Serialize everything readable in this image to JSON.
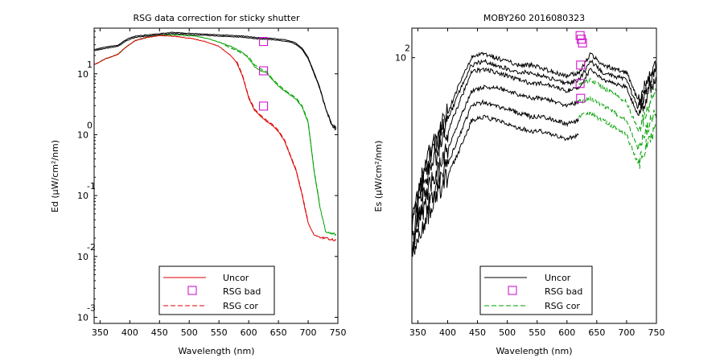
{
  "chart_data": [
    {
      "type": "line",
      "title": "RSG data correction for sticky shutter",
      "xlabel": "Wavelength (nm)",
      "ylabel": "Ed (µW/cm²/nm)",
      "yscale": "log",
      "xlim": [
        340,
        750
      ],
      "ylim_log10": [
        -3.1,
        1.75
      ],
      "xticks": [
        350,
        400,
        450,
        500,
        550,
        600,
        650,
        700,
        750
      ],
      "yticks": [
        {
          "exp": 1,
          "base": "10",
          "sup": "1"
        },
        {
          "exp": 0,
          "base": "10",
          "sup": "0"
        },
        {
          "exp": -1,
          "base": "10",
          "sup": "-1"
        },
        {
          "exp": -2,
          "base": "10",
          "sup": "-2"
        },
        {
          "exp": -3,
          "base": "10",
          "sup": "-3"
        }
      ],
      "legend": {
        "position": "bottom-center",
        "entries": [
          "Uncor",
          "RSG bad",
          "RSG cor"
        ]
      },
      "series": [
        {
          "name": "Uncor",
          "color": "#000000",
          "style": "solid",
          "x": [
            340,
            360,
            380,
            395,
            410,
            430,
            450,
            470,
            490,
            510,
            530,
            550,
            570,
            590,
            600,
            610,
            620,
            630,
            640,
            650,
            660,
            670,
            680,
            690,
            700,
            710,
            720,
            730,
            740,
            748
          ],
          "log10_y": [
            1.38,
            1.42,
            1.45,
            1.55,
            1.6,
            1.62,
            1.64,
            1.66,
            1.65,
            1.64,
            1.63,
            1.62,
            1.61,
            1.6,
            1.59,
            1.58,
            1.57,
            1.57,
            1.56,
            1.55,
            1.54,
            1.52,
            1.48,
            1.4,
            1.25,
            1.0,
            0.75,
            0.4,
            0.15,
            0.08
          ]
        },
        {
          "name": "Uncor",
          "color": "#000000",
          "style": "solid",
          "x": [
            340,
            360,
            380,
            395,
            410,
            430,
            450,
            470,
            490,
            510,
            530,
            550,
            570,
            590,
            600,
            610,
            620,
            630,
            640,
            650,
            660,
            670,
            680,
            690,
            700,
            710,
            720,
            730,
            740,
            748
          ],
          "log10_y": [
            1.4,
            1.44,
            1.47,
            1.57,
            1.62,
            1.64,
            1.66,
            1.68,
            1.67,
            1.66,
            1.65,
            1.64,
            1.63,
            1.62,
            1.61,
            1.6,
            1.59,
            1.59,
            1.58,
            1.57,
            1.56,
            1.54,
            1.5,
            1.42,
            1.27,
            1.02,
            0.77,
            0.42,
            0.17,
            0.1
          ]
        },
        {
          "name": "Uncor",
          "color": "#00a000",
          "style": "solid",
          "x": [
            340,
            360,
            380,
            395,
            410,
            430,
            450,
            470,
            490,
            510,
            530,
            550,
            570,
            590,
            600,
            610,
            620,
            630,
            640,
            650,
            660,
            670,
            680,
            690,
            700,
            710,
            720,
            730,
            740,
            748
          ],
          "log10_y": [
            1.15,
            1.25,
            1.32,
            1.45,
            1.55,
            1.6,
            1.63,
            1.64,
            1.63,
            1.62,
            1.58,
            1.52,
            1.45,
            1.35,
            1.25,
            1.12,
            1.05,
            1.02,
            0.9,
            0.8,
            0.72,
            0.65,
            0.58,
            0.45,
            0.2,
            -0.6,
            -1.2,
            -1.6,
            -1.62,
            -1.65
          ]
        },
        {
          "name": "RSG cor",
          "color": "#00a000",
          "style": "dashed",
          "x": [
            560,
            580,
            600,
            610,
            620,
            630,
            640,
            650,
            660,
            670,
            680,
            690,
            700,
            710,
            720
          ],
          "log10_y": [
            1.47,
            1.38,
            1.28,
            1.15,
            1.08,
            1.04,
            0.92,
            0.82,
            0.74,
            0.67,
            0.6,
            0.47,
            0.22,
            -0.58,
            -1.18
          ]
        },
        {
          "name": "Uncor",
          "color": "#dd0000",
          "style": "solid",
          "x": [
            340,
            360,
            380,
            395,
            410,
            430,
            450,
            470,
            490,
            510,
            530,
            550,
            570,
            580,
            590,
            600,
            610,
            620,
            630,
            640,
            650,
            660,
            670,
            680,
            690,
            700,
            710,
            720,
            730,
            740,
            748
          ],
          "log10_y": [
            1.15,
            1.25,
            1.32,
            1.45,
            1.55,
            1.6,
            1.63,
            1.62,
            1.6,
            1.57,
            1.52,
            1.45,
            1.3,
            1.18,
            0.95,
            0.6,
            0.4,
            0.3,
            0.22,
            0.15,
            0.05,
            -0.1,
            -0.35,
            -0.6,
            -1.0,
            -1.45,
            -1.65,
            -1.68,
            -1.7,
            -1.72,
            -1.75
          ]
        },
        {
          "name": "RSG cor",
          "color": "#dd0000",
          "style": "dashed",
          "x": [
            580,
            590,
            600,
            610,
            620,
            630,
            640,
            650,
            660,
            670,
            680,
            690,
            700
          ],
          "log10_y": [
            1.2,
            0.97,
            0.62,
            0.42,
            0.32,
            0.24,
            0.17,
            0.07,
            -0.08,
            -0.33,
            -0.58,
            -0.98,
            -1.43
          ]
        }
      ],
      "markers": {
        "name": "RSG bad",
        "color": "#cc00cc",
        "x": [
          625,
          625,
          625
        ],
        "log10_y": [
          1.53,
          1.05,
          0.47
        ]
      }
    },
    {
      "type": "line",
      "title": "MOBY260  2016080323",
      "xlabel": "Wavelength (nm)",
      "ylabel": "Es (µW/cm²/nm)",
      "yscale": "log",
      "xlim": [
        340,
        750
      ],
      "ylim_log10": [
        1.28,
        2.08
      ],
      "xticks": [
        350,
        400,
        450,
        500,
        550,
        600,
        650,
        700,
        750
      ],
      "yticks": [
        {
          "exp": 2,
          "base": "10",
          "sup": "2"
        }
      ],
      "legend": {
        "position": "bottom-center",
        "entries": [
          "Uncor",
          "RSG bad",
          "RSG cor"
        ]
      },
      "series": [
        {
          "name": "Uncor",
          "color": "#000000",
          "style": "solid",
          "x": [
            340,
            360,
            380,
            400,
            420,
            440,
            460,
            480,
            500,
            520,
            540,
            560,
            580,
            600,
            620,
            640,
            660,
            680,
            700,
            720,
            740,
            750
          ],
          "log10_y": [
            1.55,
            1.7,
            1.78,
            1.85,
            1.93,
            2.0,
            2.01,
            2.0,
            1.99,
            1.98,
            1.98,
            1.97,
            1.96,
            1.95,
            1.96,
            2.01,
            1.98,
            1.97,
            1.96,
            1.88,
            1.96,
            1.98
          ]
        },
        {
          "name": "Uncor",
          "color": "#000000",
          "style": "solid",
          "x": [
            340,
            360,
            380,
            400,
            420,
            440,
            460,
            480,
            500,
            520,
            540,
            560,
            580,
            600,
            620,
            640,
            660,
            680,
            700,
            720,
            740,
            750
          ],
          "log10_y": [
            1.54,
            1.69,
            1.76,
            1.83,
            1.91,
            1.98,
            1.99,
            1.98,
            1.97,
            1.96,
            1.96,
            1.95,
            1.94,
            1.93,
            1.94,
            1.99,
            1.96,
            1.95,
            1.94,
            1.86,
            1.94,
            1.96
          ]
        },
        {
          "name": "Uncor",
          "color": "#000000",
          "style": "solid",
          "x": [
            340,
            360,
            380,
            400,
            420,
            440,
            460,
            480,
            500,
            520,
            540,
            560,
            580,
            600,
            620,
            640,
            660,
            680,
            700,
            720,
            740,
            750
          ],
          "log10_y": [
            1.52,
            1.66,
            1.73,
            1.8,
            1.88,
            1.96,
            1.97,
            1.96,
            1.95,
            1.94,
            1.93,
            1.93,
            1.92,
            1.91,
            1.92,
            1.97,
            1.94,
            1.93,
            1.92,
            1.84,
            1.92,
            1.94
          ]
        },
        {
          "name": "Uncor",
          "color": "#000000",
          "style": "solid",
          "x": [
            340,
            360,
            380,
            400,
            420,
            440,
            460,
            480,
            500,
            520,
            540,
            560,
            580,
            600,
            620
          ],
          "log10_y": [
            1.5,
            1.62,
            1.69,
            1.75,
            1.83,
            1.91,
            1.92,
            1.92,
            1.91,
            1.9,
            1.89,
            1.89,
            1.88,
            1.87,
            1.88
          ]
        },
        {
          "name": "Uncor",
          "color": "#000000",
          "style": "solid",
          "x": [
            340,
            360,
            380,
            400,
            420,
            440,
            460,
            480,
            500,
            520,
            540,
            560,
            580,
            600,
            620
          ],
          "log10_y": [
            1.48,
            1.58,
            1.65,
            1.71,
            1.79,
            1.87,
            1.88,
            1.87,
            1.86,
            1.85,
            1.84,
            1.84,
            1.83,
            1.82,
            1.83
          ]
        },
        {
          "name": "Uncor",
          "color": "#000000",
          "style": "solid",
          "x": [
            340,
            360,
            380,
            400,
            420,
            440,
            460,
            480,
            500,
            520,
            540,
            560,
            580,
            600,
            620
          ],
          "log10_y": [
            1.46,
            1.55,
            1.62,
            1.68,
            1.75,
            1.83,
            1.84,
            1.83,
            1.82,
            1.81,
            1.8,
            1.8,
            1.79,
            1.78,
            1.79
          ]
        },
        {
          "name": "RSG cor",
          "color": "#00a000",
          "style": "dashed",
          "x": [
            620,
            640,
            660,
            680,
            700,
            720,
            740,
            750
          ],
          "log10_y": [
            1.93,
            1.94,
            1.92,
            1.9,
            1.88,
            1.8,
            1.88,
            1.9
          ]
        },
        {
          "name": "RSG cor",
          "color": "#00a000",
          "style": "dashed",
          "x": [
            620,
            640,
            660,
            680,
            700,
            720,
            740,
            750
          ],
          "log10_y": [
            1.88,
            1.89,
            1.87,
            1.85,
            1.83,
            1.75,
            1.83,
            1.85
          ]
        },
        {
          "name": "RSG cor",
          "color": "#00a000",
          "style": "dashed",
          "x": [
            620,
            640,
            660,
            680,
            700,
            720,
            740,
            750
          ],
          "log10_y": [
            1.84,
            1.85,
            1.83,
            1.81,
            1.79,
            1.71,
            1.79,
            1.81
          ]
        }
      ],
      "markers": {
        "name": "RSG bad",
        "color": "#cc00cc",
        "x": [
          622,
          624,
          626,
          623,
          622,
          623
        ],
        "log10_y": [
          2.06,
          2.05,
          2.04,
          1.98,
          1.93,
          1.89
        ]
      }
    }
  ]
}
